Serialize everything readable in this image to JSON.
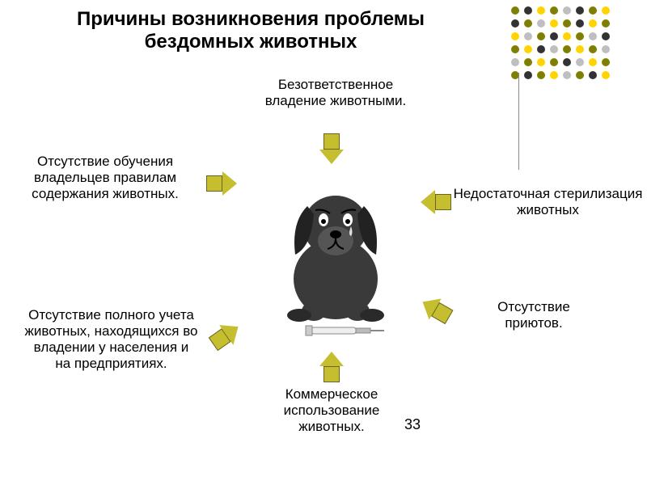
{
  "title": "Причины возникновения проблемы бездомных животных",
  "title_fontsize": 24,
  "page_number": "33",
  "page_number_fontsize": 18,
  "arrow_fill": "#c5be2f",
  "arrow_stroke": "#6b6420",
  "text_color": "#000000",
  "cause_fontsize": 17,
  "background": "#ffffff",
  "causes": {
    "top": "Безответственное владение животными.",
    "left_upper": "Отсутствие обучения владельцев правилам содержания животных.",
    "right_upper": "Недостаточная стерилизация животных",
    "left_lower": "Отсутствие полного учета животных, находящихся во владении у населения и на предприятиях.",
    "right_lower": "Отсутствие приютов.",
    "bottom": "Коммерческое использование животных."
  },
  "deco_colors": {
    "olive": "#808000",
    "dark": "#333333",
    "yellow": "#ffd400",
    "gray": "#bfbfbf"
  },
  "deco_pattern": [
    [
      "olive",
      "dark",
      "yellow",
      "olive",
      "gray",
      "dark",
      "olive",
      "yellow"
    ],
    [
      "dark",
      "olive",
      "gray",
      "yellow",
      "olive",
      "dark",
      "yellow",
      "olive"
    ],
    [
      "yellow",
      "gray",
      "olive",
      "dark",
      "yellow",
      "olive",
      "gray",
      "dark"
    ],
    [
      "olive",
      "yellow",
      "dark",
      "gray",
      "olive",
      "yellow",
      "olive",
      "gray"
    ],
    [
      "gray",
      "olive",
      "yellow",
      "olive",
      "dark",
      "gray",
      "yellow",
      "olive"
    ],
    [
      "olive",
      "dark",
      "olive",
      "yellow",
      "gray",
      "olive",
      "dark",
      "yellow"
    ]
  ]
}
